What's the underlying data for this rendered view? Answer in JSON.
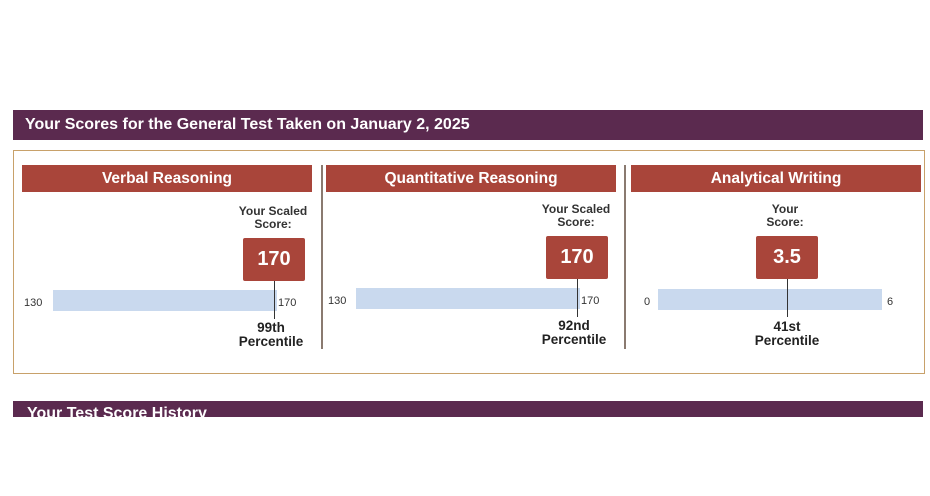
{
  "header": {
    "title": "Your Scores for the General Test Taken on January 2, 2025"
  },
  "sections": [
    {
      "title": "Verbal Reasoning",
      "score_label_1": "Your Scaled",
      "score_label_2": "Score:",
      "score": "170",
      "scale_min": "130",
      "scale_max": "170",
      "percentile_1": "99th",
      "percentile_2": "Percentile"
    },
    {
      "title": "Quantitative Reasoning",
      "score_label_1": "Your Scaled",
      "score_label_2": "Score:",
      "score": "170",
      "scale_min": "130",
      "scale_max": "170",
      "percentile_1": "92nd",
      "percentile_2": "Percentile"
    },
    {
      "title": "Analytical Writing",
      "score_label_1": "Your",
      "score_label_2": "Score:",
      "score": "3.5",
      "scale_min": "0",
      "scale_max": "6",
      "percentile_1": "41st",
      "percentile_2": "Percentile"
    }
  ],
  "history": {
    "title": "Your Test Score History"
  },
  "colors": {
    "header_bg": "#5b2a4f",
    "section_bg": "#a9453a",
    "bar_bg": "#c9d9ee",
    "box_border": "#c8a16a"
  }
}
